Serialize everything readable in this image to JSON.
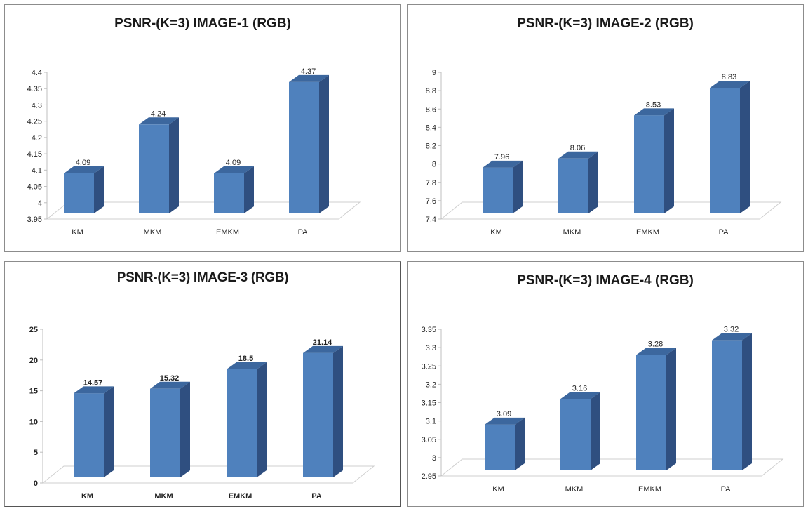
{
  "colors": {
    "bar_front": "#4f81bd",
    "bar_side": "#2f4f80",
    "bar_top": "#3c679e",
    "floor": "#cfcfcf"
  },
  "chart_data": [
    {
      "type": "bar",
      "title": "PSNR-(K=3) IMAGE-1 (RGB)",
      "categories": [
        "KM",
        "MKM",
        "EMKM",
        "PA"
      ],
      "values": [
        4.09,
        4.24,
        4.09,
        4.37
      ],
      "value_labels": [
        "4.09",
        "4.24",
        "4.09",
        "4.37"
      ],
      "yticks": [
        "3.95",
        "4",
        "4.05",
        "4.1",
        "4.15",
        "4.2",
        "4.25",
        "4.3",
        "4.35",
        "4.4"
      ],
      "ylim": [
        3.95,
        4.4
      ],
      "xlabel": "",
      "ylabel": "",
      "grid": false,
      "legend": "none"
    },
    {
      "type": "bar",
      "title": "PSNR-(K=3) IMAGE-2 (RGB)",
      "categories": [
        "KM",
        "MKM",
        "EMKM",
        "PA"
      ],
      "values": [
        7.96,
        8.06,
        8.53,
        8.83
      ],
      "value_labels": [
        "7.96",
        "8.06",
        "8.53",
        "8.83"
      ],
      "yticks": [
        "7.4",
        "7.6",
        "7.8",
        "8",
        "8.2",
        "8.4",
        "8.6",
        "8.8",
        "9"
      ],
      "ylim": [
        7.4,
        9
      ],
      "xlabel": "",
      "ylabel": "",
      "grid": false,
      "legend": "none"
    },
    {
      "type": "bar",
      "title": "PSNR-(K=3) IMAGE-3 (RGB)",
      "categories": [
        "KM",
        "MKM",
        "EMKM",
        "PA"
      ],
      "values": [
        14.57,
        15.32,
        18.5,
        21.14
      ],
      "value_labels": [
        "14.57",
        "15.32",
        "18.5",
        "21.14"
      ],
      "yticks": [
        "0",
        "5",
        "10",
        "15",
        "20",
        "25"
      ],
      "ylim": [
        0,
        25
      ],
      "xlabel": "",
      "ylabel": "",
      "grid": false,
      "legend": "none"
    },
    {
      "type": "bar",
      "title": "PSNR-(K=3) IMAGE-4 (RGB)",
      "categories": [
        "KM",
        "MKM",
        "EMKM",
        "PA"
      ],
      "values": [
        3.09,
        3.16,
        3.28,
        3.32
      ],
      "value_labels": [
        "3.09",
        "3.16",
        "3.28",
        "3.32"
      ],
      "yticks": [
        "2.95",
        "3",
        "3.05",
        "3.1",
        "3.15",
        "3.2",
        "3.25",
        "3.3",
        "3.35"
      ],
      "ylim": [
        2.95,
        3.35
      ],
      "xlabel": "",
      "ylabel": "",
      "grid": false,
      "legend": "none"
    }
  ]
}
